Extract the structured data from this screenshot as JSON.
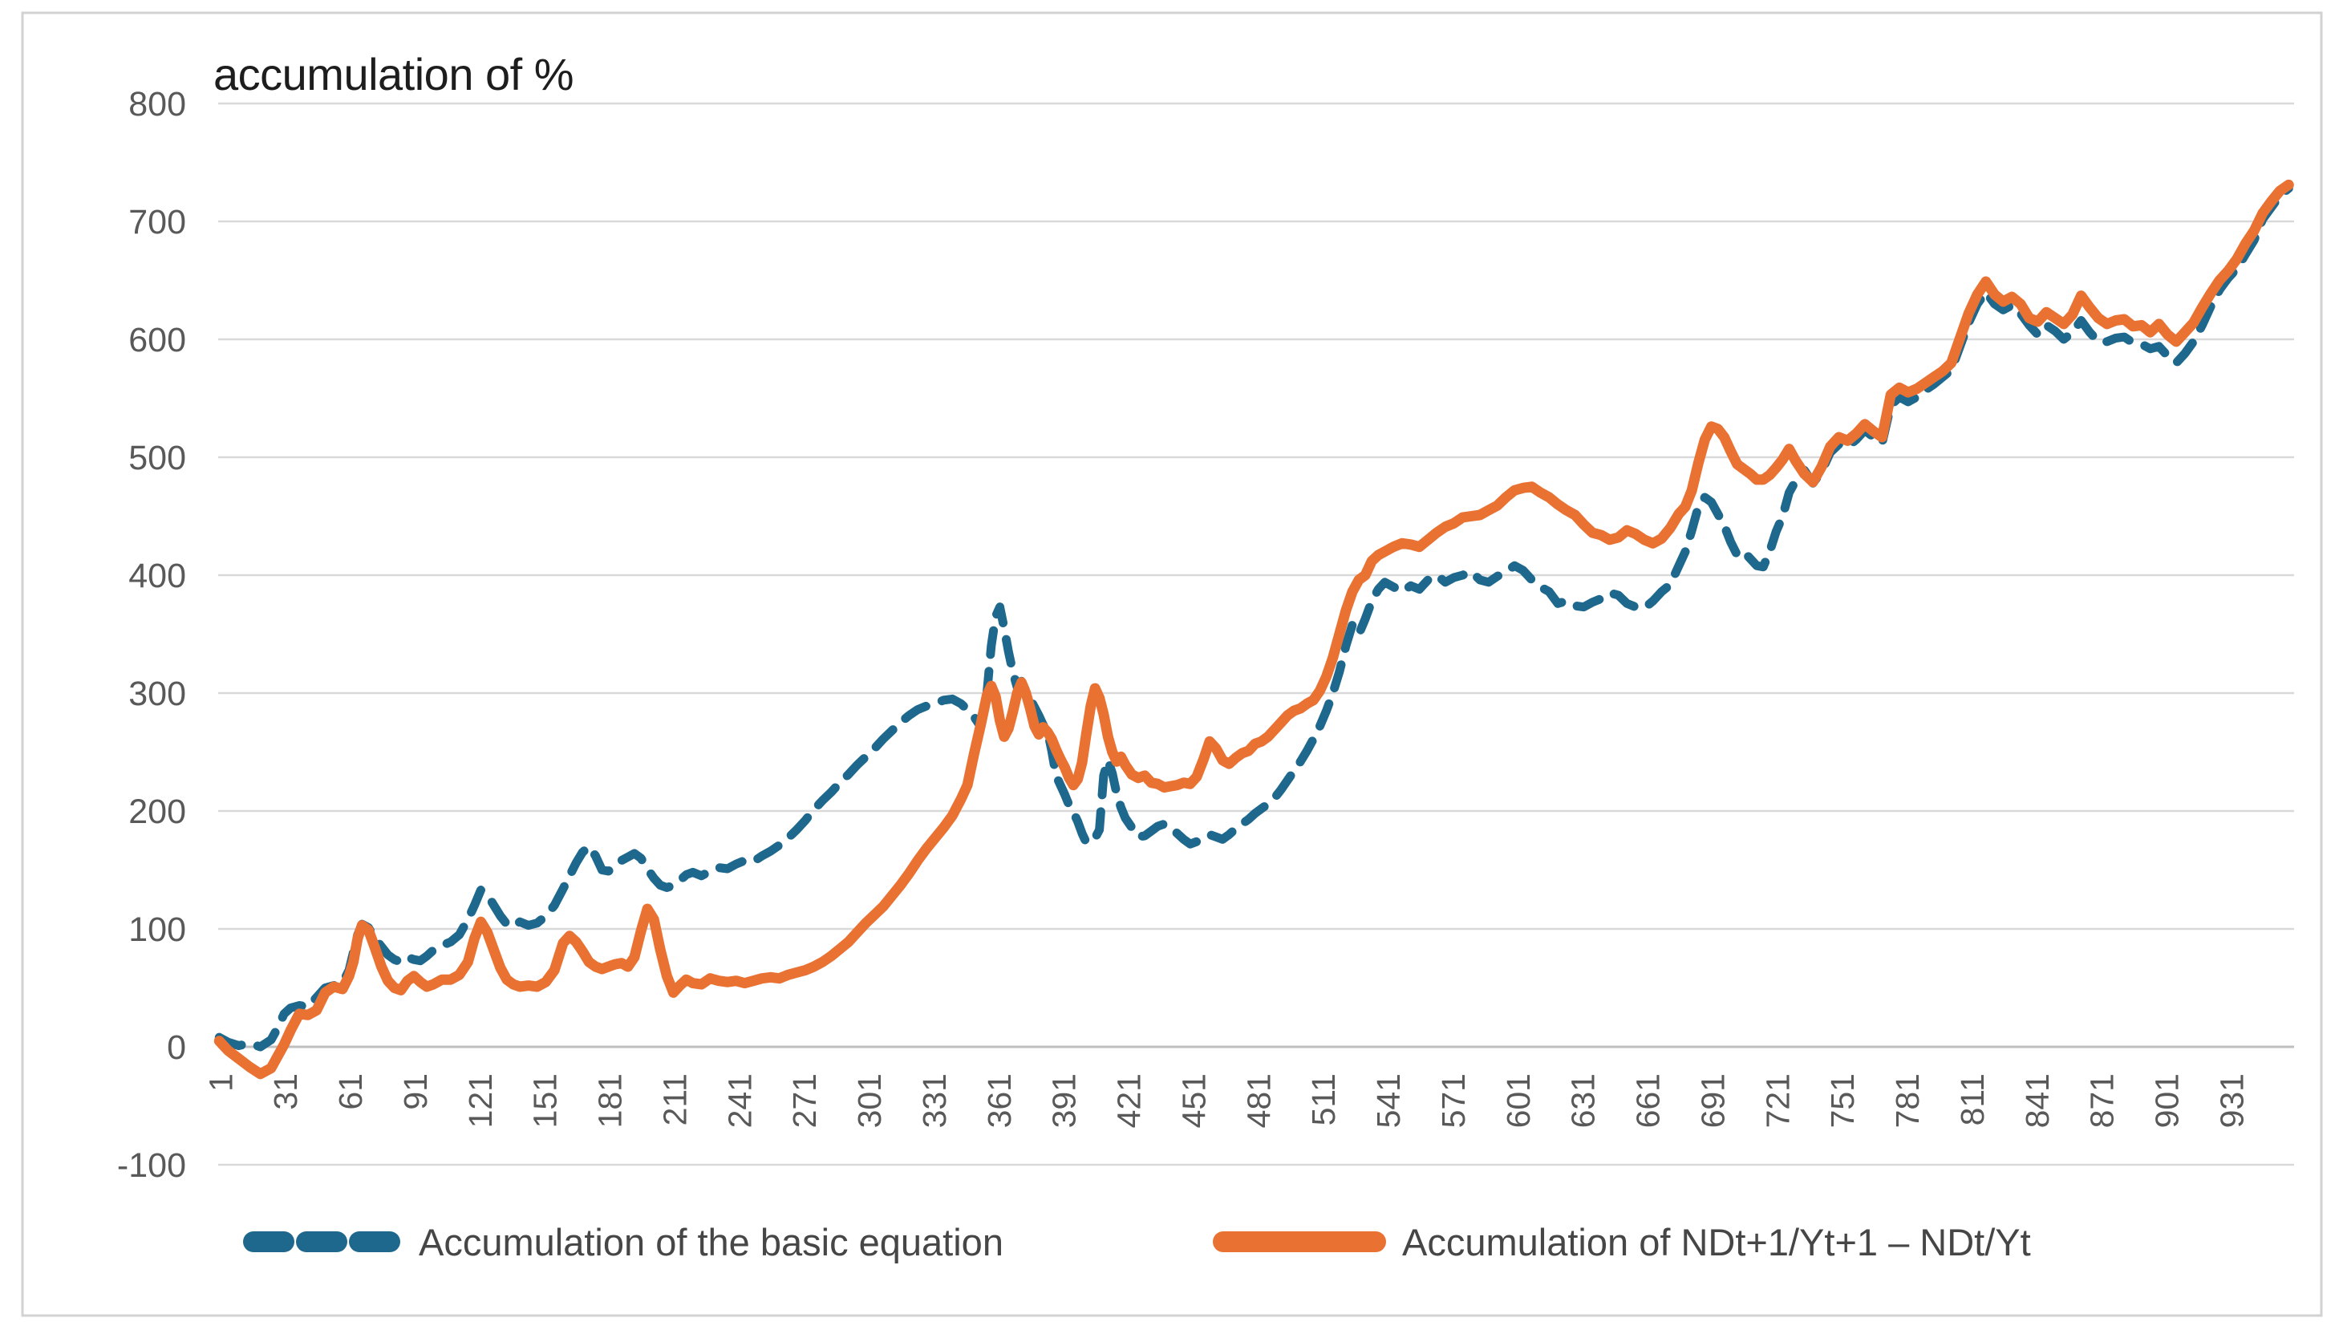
{
  "chart_data": {
    "type": "line",
    "title": "accumulation of %",
    "xlabel": "",
    "ylabel": "",
    "grid": true,
    "legend_position": "bottom",
    "y_axis": {
      "min": -100,
      "max": 800,
      "tick_step": 100,
      "ticks": [
        800,
        700,
        600,
        500,
        400,
        300,
        200,
        100,
        0,
        -100
      ]
    },
    "x_axis": {
      "range": [
        1,
        960
      ],
      "tick_labels": [
        "1",
        "31",
        "61",
        "91",
        "121",
        "151",
        "181",
        "211",
        "241",
        "271",
        "301",
        "331",
        "361",
        "391",
        "421",
        "451",
        "481",
        "511",
        "541",
        "571",
        "601",
        "631",
        "661",
        "691",
        "721",
        "751",
        "781",
        "811",
        "841",
        "871",
        "901",
        "931"
      ],
      "label_rotation_deg": -90
    },
    "x": [
      1,
      5,
      10,
      15,
      20,
      25,
      28,
      31,
      34,
      38,
      42,
      46,
      50,
      54,
      58,
      61,
      63,
      65,
      67,
      70,
      73,
      76,
      79,
      82,
      85,
      88,
      91,
      94,
      97,
      100,
      104,
      108,
      112,
      116,
      119,
      122,
      125,
      128,
      131,
      134,
      137,
      140,
      144,
      148,
      152,
      156,
      160,
      163,
      166,
      169,
      172,
      175,
      178,
      181,
      184,
      187,
      190,
      193,
      196,
      199,
      202,
      205,
      208,
      211,
      214,
      217,
      220,
      224,
      228,
      232,
      236,
      240,
      244,
      248,
      252,
      256,
      260,
      264,
      268,
      272,
      276,
      280,
      284,
      288,
      292,
      296,
      300,
      304,
      308,
      312,
      316,
      320,
      324,
      328,
      332,
      336,
      340,
      344,
      347,
      350,
      353,
      356,
      358,
      360,
      362,
      364,
      366,
      368,
      370,
      372,
      374,
      376,
      378,
      380,
      382,
      384,
      386,
      388,
      390,
      392,
      394,
      396,
      398,
      400,
      402,
      404,
      406,
      408,
      410,
      412,
      414,
      416,
      418,
      420,
      423,
      426,
      429,
      432,
      435,
      438,
      441,
      444,
      447,
      450,
      453,
      456,
      459,
      462,
      465,
      468,
      471,
      474,
      477,
      480,
      483,
      486,
      489,
      492,
      495,
      498,
      501,
      504,
      507,
      510,
      513,
      516,
      519,
      522,
      525,
      528,
      531,
      534,
      537,
      540,
      544,
      548,
      552,
      556,
      560,
      564,
      568,
      572,
      576,
      580,
      584,
      588,
      592,
      596,
      600,
      604,
      608,
      612,
      616,
      620,
      624,
      628,
      632,
      636,
      640,
      644,
      648,
      652,
      656,
      660,
      664,
      668,
      672,
      676,
      679,
      682,
      685,
      688,
      691,
      694,
      697,
      700,
      703,
      706,
      709,
      712,
      715,
      718,
      721,
      724,
      727,
      730,
      734,
      738,
      742,
      746,
      750,
      754,
      758,
      762,
      766,
      770,
      774,
      778,
      782,
      786,
      790,
      794,
      798,
      802,
      806,
      810,
      814,
      818,
      822,
      826,
      830,
      834,
      838,
      842,
      846,
      850,
      854,
      858,
      862,
      866,
      870,
      874,
      878,
      882,
      886,
      890,
      894,
      898,
      902,
      906,
      910,
      914,
      918,
      922,
      926,
      930,
      934,
      938,
      942,
      946,
      950,
      954,
      958
    ],
    "series": [
      {
        "name": "Accumulation of the basic equation",
        "color": "#1E688D",
        "line_style": "dashed",
        "values": [
          8,
          4,
          1,
          3,
          0,
          6,
          16,
          28,
          33,
          35,
          34,
          42,
          50,
          52,
          54,
          65,
          80,
          95,
          104,
          101,
          92,
          85,
          78,
          74,
          72,
          76,
          74,
          73,
          77,
          82,
          86,
          89,
          95,
          108,
          120,
          133,
          129,
          120,
          111,
          104,
          102,
          106,
          103,
          105,
          111,
          120,
          134,
          145,
          156,
          165,
          170,
          162,
          150,
          149,
          154,
          158,
          161,
          164,
          160,
          151,
          143,
          137,
          135,
          137,
          141,
          146,
          148,
          145,
          149,
          152,
          151,
          155,
          158,
          157,
          162,
          166,
          171,
          177,
          184,
          192,
          201,
          209,
          216,
          224,
          231,
          239,
          246,
          253,
          261,
          268,
          275,
          281,
          286,
          289,
          291,
          294,
          295,
          291,
          286,
          280,
          272,
          300,
          340,
          365,
          373,
          355,
          335,
          318,
          305,
          310,
          302,
          295,
          288,
          281,
          273,
          268,
          251,
          230,
          222,
          214,
          205,
          199,
          191,
          181,
          173,
          174,
          177,
          184,
          230,
          243,
          232,
          215,
          203,
          194,
          186,
          178,
          179,
          183,
          187,
          189,
          186,
          181,
          176,
          172,
          174,
          177,
          180,
          178,
          176,
          180,
          185,
          189,
          193,
          198,
          202,
          206,
          211,
          218,
          226,
          234,
          242,
          251,
          261,
          272,
          285,
          300,
          318,
          340,
          358,
          350,
          363,
          378,
          388,
          394,
          390,
          386,
          391,
          388,
          396,
          400,
          394,
          398,
          400,
          403,
          396,
          394,
          399,
          403,
          408,
          404,
          396,
          390,
          386,
          376,
          378,
          374,
          373,
          377,
          380,
          385,
          383,
          376,
          373,
          372,
          378,
          386,
          392,
          408,
          420,
          438,
          458,
          466,
          462,
          452,
          442,
          428,
          417,
          420,
          414,
          408,
          407,
          420,
          437,
          450,
          470,
          480,
          489,
          478,
          488,
          504,
          511,
          509,
          515,
          523,
          517,
          512,
          544,
          551,
          547,
          551,
          557,
          562,
          568,
          574,
          594,
          614,
          630,
          640,
          630,
          625,
          629,
          622,
          612,
          604,
          612,
          607,
          600,
          606,
          616,
          606,
          598,
          598,
          601,
          602,
          597,
          596,
          592,
          594,
          586,
          580,
          588,
          598,
          612,
          628,
          642,
          652,
          660,
          672,
          684,
          702,
          712,
          722,
          728
        ]
      },
      {
        "name": "Accumulation of NDt+1/Yt+1 – NDt/Yt",
        "color": "#E97132",
        "line_style": "solid",
        "values": [
          5,
          -3,
          -10,
          -17,
          -23,
          -18,
          -8,
          2,
          14,
          28,
          27,
          31,
          46,
          51,
          49,
          60,
          72,
          92,
          103,
          99,
          84,
          68,
          56,
          50,
          48,
          56,
          60,
          55,
          51,
          53,
          57,
          57,
          61,
          72,
          92,
          106,
          97,
          82,
          67,
          57,
          53,
          51,
          52,
          51,
          55,
          65,
          88,
          94,
          89,
          81,
          72,
          68,
          66,
          68,
          70,
          71,
          68,
          76,
          98,
          117,
          108,
          82,
          60,
          46,
          52,
          57,
          54,
          53,
          58,
          56,
          55,
          56,
          54,
          56,
          58,
          59,
          58,
          61,
          63,
          65,
          68,
          72,
          77,
          83,
          89,
          97,
          105,
          112,
          119,
          128,
          137,
          147,
          158,
          168,
          177,
          186,
          196,
          210,
          222,
          248,
          272,
          298,
          306,
          297,
          277,
          263,
          270,
          284,
          300,
          309,
          300,
          287,
          272,
          265,
          271,
          267,
          261,
          252,
          244,
          237,
          228,
          222,
          227,
          241,
          266,
          289,
          304,
          296,
          282,
          263,
          250,
          242,
          246,
          239,
          231,
          228,
          230,
          224,
          223,
          220,
          221,
          222,
          224,
          223,
          229,
          243,
          259,
          253,
          243,
          240,
          245,
          249,
          251,
          257,
          259,
          263,
          269,
          275,
          281,
          285,
          287,
          291,
          294,
          302,
          314,
          330,
          350,
          370,
          386,
          396,
          400,
          412,
          417,
          420,
          424,
          427,
          426,
          424,
          430,
          436,
          441,
          444,
          449,
          450,
          451,
          455,
          459,
          466,
          472,
          474,
          475,
          470,
          466,
          460,
          455,
          451,
          443,
          436,
          434,
          430,
          432,
          438,
          435,
          430,
          427,
          431,
          440,
          452,
          458,
          472,
          495,
          515,
          526,
          524,
          517,
          505,
          494,
          490,
          486,
          481,
          481,
          485,
          491,
          498,
          507,
          497,
          486,
          479,
          492,
          509,
          517,
          514,
          520,
          528,
          522,
          517,
          553,
          559,
          555,
          558,
          563,
          568,
          573,
          580,
          601,
          622,
          638,
          649,
          638,
          632,
          636,
          630,
          618,
          615,
          623,
          618,
          613,
          621,
          637,
          627,
          618,
          613,
          616,
          617,
          611,
          612,
          606,
          613,
          604,
          598,
          606,
          614,
          627,
          639,
          650,
          658,
          668,
          681,
          692,
          707,
          717,
          726,
          731
        ]
      }
    ],
    "legend": {
      "entries": [
        {
          "label": "Accumulation of the basic equation",
          "swatch": "dashed-line"
        },
        {
          "label": "Accumulation of NDt+1/Yt+1 – NDt/Yt",
          "swatch": "solid-line"
        }
      ]
    },
    "colors": {
      "series_basic": "#1E688D",
      "series_nd": "#E97132",
      "gridline": "#D9D9D9",
      "axis_line": "#BFBFBF",
      "tick_label": "#595959",
      "title": "#1D1D1D",
      "legend_text": "#464646",
      "chart_border": "#D2D2D2",
      "background": "#FFFFFF"
    }
  }
}
